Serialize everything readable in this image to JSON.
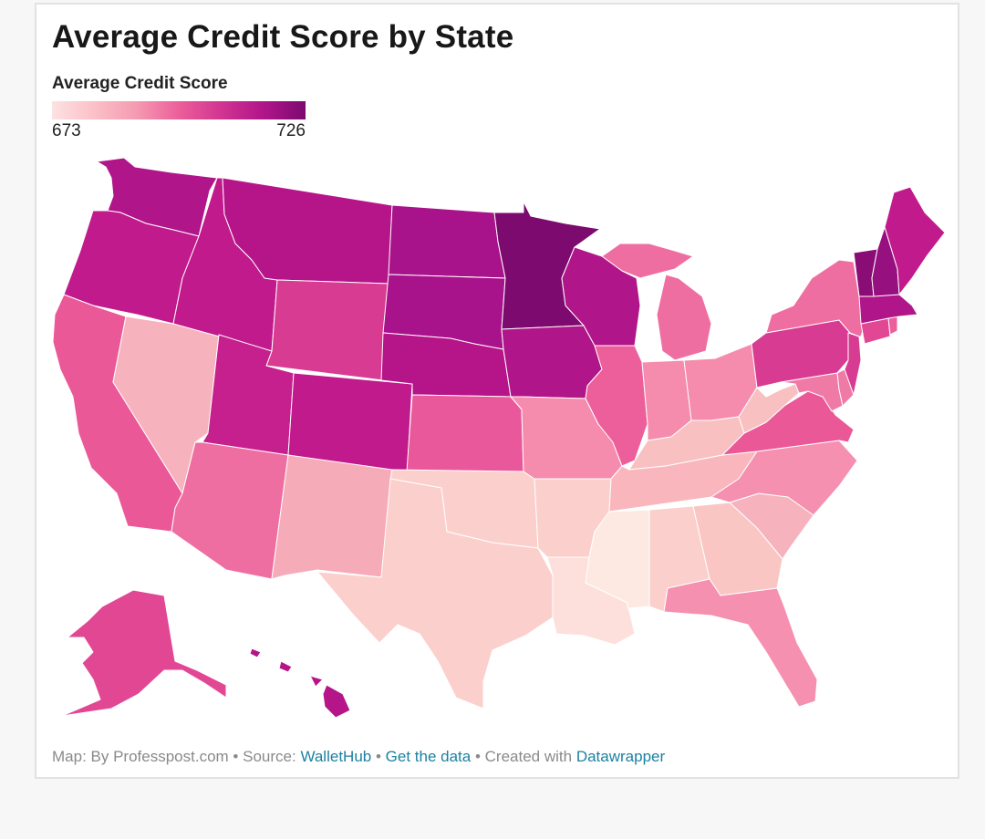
{
  "title": "Average Credit Score by State",
  "legend": {
    "title": "Average Credit Score",
    "min_label": "673",
    "max_label": "726",
    "min": 673,
    "max": 726,
    "colors": [
      "#fde2e2",
      "#fbc0c8",
      "#f59ab2",
      "#ec5f9a",
      "#d23591",
      "#b0158a",
      "#7c0a6f"
    ]
  },
  "footer": {
    "map_by": "Map: By Professpost.com",
    "source_prefix": "Source:",
    "source_link": "WalletHub",
    "get_data": "Get the data",
    "created_with": "Created with",
    "datawrapper": "Datawrapper",
    "bullet": "•"
  },
  "chart_data": {
    "type": "choropleth",
    "scale": [
      673,
      726
    ],
    "states": [
      {
        "id": "WA",
        "value": 714,
        "color": "#b0158a"
      },
      {
        "id": "OR",
        "value": 712,
        "color": "#c01a8c"
      },
      {
        "id": "CA",
        "value": 705,
        "color": "#ea5897"
      },
      {
        "id": "NV",
        "value": 685,
        "color": "#f7b3bd"
      },
      {
        "id": "ID",
        "value": 713,
        "color": "#c01a8c"
      },
      {
        "id": "MT",
        "value": 716,
        "color": "#b61589"
      },
      {
        "id": "WY",
        "value": 708,
        "color": "#d83c92"
      },
      {
        "id": "UT",
        "value": 712,
        "color": "#c5208d"
      },
      {
        "id": "AZ",
        "value": 698,
        "color": "#ef6ea1"
      },
      {
        "id": "CO",
        "value": 714,
        "color": "#c01a8c"
      },
      {
        "id": "NM",
        "value": 688,
        "color": "#f6abb8"
      },
      {
        "id": "ND",
        "value": 720,
        "color": "#a8128a"
      },
      {
        "id": "SD",
        "value": 721,
        "color": "#a8128a"
      },
      {
        "id": "NE",
        "value": 716,
        "color": "#b61589"
      },
      {
        "id": "KS",
        "value": 706,
        "color": "#e9589a"
      },
      {
        "id": "OK",
        "value": 680,
        "color": "#fbd0cc"
      },
      {
        "id": "TX",
        "value": 680,
        "color": "#fbd0cc"
      },
      {
        "id": "MN",
        "value": 726,
        "color": "#7c0a6f"
      },
      {
        "id": "IA",
        "value": 717,
        "color": "#b01689"
      },
      {
        "id": "MO",
        "value": 697,
        "color": "#f58cad"
      },
      {
        "id": "AR",
        "value": 679,
        "color": "#fbd0cc"
      },
      {
        "id": "LA",
        "value": 677,
        "color": "#fde0dc"
      },
      {
        "id": "WI",
        "value": 719,
        "color": "#b01689"
      },
      {
        "id": "IL",
        "value": 706,
        "color": "#ec5f9a"
      },
      {
        "id": "MI",
        "value": 704,
        "color": "#ef6ea1"
      },
      {
        "id": "IN",
        "value": 697,
        "color": "#f58cad"
      },
      {
        "id": "OH",
        "value": 697,
        "color": "#f58cad"
      },
      {
        "id": "KY",
        "value": 690,
        "color": "#f9c0c2"
      },
      {
        "id": "TN",
        "value": 690,
        "color": "#f9b7bd"
      },
      {
        "id": "MS",
        "value": 673,
        "color": "#fde9e2"
      },
      {
        "id": "AL",
        "value": 681,
        "color": "#fbd0cc"
      },
      {
        "id": "GA",
        "value": 684,
        "color": "#f9c6c4"
      },
      {
        "id": "FL",
        "value": 695,
        "color": "#f590b0"
      },
      {
        "id": "SC",
        "value": 685,
        "color": "#f7b3bd"
      },
      {
        "id": "NC",
        "value": 695,
        "color": "#f590b0"
      },
      {
        "id": "VA",
        "value": 705,
        "color": "#ea5897"
      },
      {
        "id": "WV",
        "value": 688,
        "color": "#f9c0c2"
      },
      {
        "id": "MD",
        "value": 701,
        "color": "#f07aa6"
      },
      {
        "id": "DE",
        "value": 700,
        "color": "#f07aa6"
      },
      {
        "id": "PA",
        "value": 708,
        "color": "#d83c92"
      },
      {
        "id": "NJ",
        "value": 709,
        "color": "#d83c92"
      },
      {
        "id": "NY",
        "value": 705,
        "color": "#ef6ea1"
      },
      {
        "id": "CT",
        "value": 708,
        "color": "#e24794"
      },
      {
        "id": "RI",
        "value": 704,
        "color": "#ec5f9a"
      },
      {
        "id": "MA",
        "value": 717,
        "color": "#b01689"
      },
      {
        "id": "VT",
        "value": 723,
        "color": "#8a0d76"
      },
      {
        "id": "NH",
        "value": 722,
        "color": "#97107f"
      },
      {
        "id": "ME",
        "value": 713,
        "color": "#c01a8c"
      },
      {
        "id": "AK",
        "value": 707,
        "color": "#e24794"
      },
      {
        "id": "HI",
        "value": 716,
        "color": "#b61589"
      }
    ]
  }
}
